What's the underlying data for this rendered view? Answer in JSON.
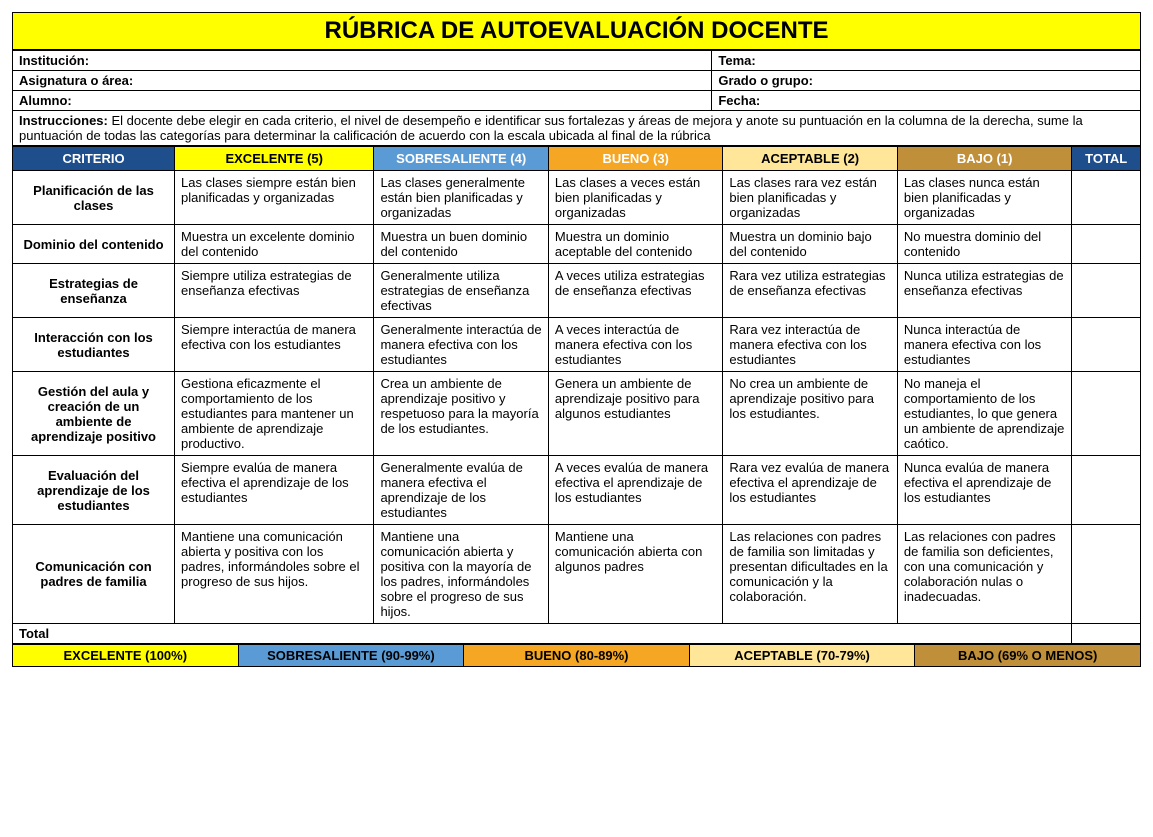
{
  "title": "RÚBRICA DE AUTOEVALUACIÓN DOCENTE",
  "title_bg": "#ffff00",
  "meta": {
    "institucion_label": "Institución:",
    "tema_label": "Tema:",
    "asignatura_label": "Asignatura o área:",
    "grado_label": "Grado o grupo:",
    "alumno_label": "Alumno:",
    "fecha_label": "Fecha:"
  },
  "instructions_label": "Instrucciones:",
  "instructions_text": "  El docente debe elegir en cada criterio, el nivel de desempeño e identificar sus fortalezas y áreas de mejora y anote su puntuación en la columna de la derecha, sume la puntuación de todas las categorías para determinar la calificación de acuerdo con la escala ubicada al final de la rúbrica",
  "columns": {
    "widths": [
      "13%",
      "16%",
      "14%",
      "14%",
      "14%",
      "14%",
      "5.5%"
    ],
    "headers": [
      {
        "label": "CRITERIO",
        "bg": "#1f4e8c"
      },
      {
        "label": "EXCELENTE (5)",
        "bg": "#ffff00",
        "fg": "#000000"
      },
      {
        "label": "SOBRESALIENTE (4)",
        "bg": "#5b9bd5"
      },
      {
        "label": "BUENO (3)",
        "bg": "#f5a623"
      },
      {
        "label": "ACEPTABLE (2)",
        "bg": "#ffe699",
        "fg": "#000000"
      },
      {
        "label": "BAJO (1)",
        "bg": "#bf8f3a"
      },
      {
        "label": "TOTAL",
        "bg": "#1f4e8c"
      }
    ]
  },
  "rows": [
    {
      "criterion": "Planificación de las clases",
      "cells": [
        "Las clases siempre están bien planificadas y organizadas",
        "Las clases generalmente están bien planificadas y organizadas",
        "Las clases a veces están bien planificadas y organizadas",
        "Las clases rara vez están bien planificadas y organizadas",
        "Las clases nunca están bien planificadas y organizadas"
      ]
    },
    {
      "criterion": "Dominio del contenido",
      "cells": [
        "Muestra un excelente dominio del contenido",
        "Muestra un buen dominio del contenido",
        "Muestra un dominio aceptable del contenido",
        "Muestra un dominio bajo del contenido",
        "No muestra dominio del contenido"
      ]
    },
    {
      "criterion": "Estrategias de enseñanza",
      "cells": [
        "Siempre utiliza estrategias de enseñanza efectivas",
        "Generalmente utiliza estrategias de enseñanza efectivas",
        "A veces utiliza estrategias de enseñanza efectivas",
        "Rara vez utiliza estrategias de enseñanza efectivas",
        "Nunca utiliza estrategias de enseñanza efectivas"
      ]
    },
    {
      "criterion": "Interacción con los estudiantes",
      "cells": [
        "Siempre interactúa de manera efectiva con los estudiantes",
        "Generalmente interactúa de manera efectiva con los estudiantes",
        "A veces interactúa de manera efectiva con los estudiantes",
        "Rara vez interactúa de manera efectiva con los estudiantes",
        "Nunca interactúa de manera efectiva con los estudiantes"
      ]
    },
    {
      "criterion": "Gestión del aula y creación de un ambiente de aprendizaje positivo",
      "cells": [
        "Gestiona eficazmente el comportamiento de los estudiantes para mantener un ambiente de aprendizaje productivo.",
        "Crea un ambiente de aprendizaje positivo y respetuoso para la mayoría de los estudiantes.",
        "Genera un ambiente de aprendizaje positivo para algunos estudiantes",
        "No crea un ambiente de aprendizaje positivo para los estudiantes.",
        "No maneja el comportamiento de los estudiantes, lo que genera un ambiente de aprendizaje caótico."
      ]
    },
    {
      "criterion": "Evaluación del aprendizaje de los estudiantes",
      "cells": [
        "Siempre evalúa de manera efectiva el aprendizaje de los estudiantes",
        "Generalmente evalúa de manera efectiva el aprendizaje de los estudiantes",
        "A veces evalúa de manera efectiva el aprendizaje de los estudiantes",
        "Rara vez evalúa de manera efectiva el aprendizaje de los estudiantes",
        "Nunca evalúa de manera efectiva el aprendizaje de los estudiantes"
      ]
    },
    {
      "criterion": "Comunicación con padres de familia",
      "cells": [
        "Mantiene una comunicación abierta y positiva con los padres, informándoles sobre el progreso de sus hijos.",
        "Mantiene una comunicación abierta y positiva con la mayoría de los padres, informándoles sobre el progreso de sus hijos.",
        "Mantiene una comunicación abierta con algunos padres",
        "Las relaciones con padres de familia son limitadas y presentan dificultades en la comunicación y la colaboración.",
        "Las relaciones con padres de familia son deficientes, con una comunicación y colaboración nulas o inadecuadas."
      ]
    }
  ],
  "total_label": "Total",
  "scale": [
    {
      "label": "EXCELENTE (100%)",
      "bg": "#ffff00"
    },
    {
      "label": "SOBRESALIENTE (90-99%)",
      "bg": "#5b9bd5"
    },
    {
      "label": "BUENO (80-89%)",
      "bg": "#f5a623"
    },
    {
      "label": "ACEPTABLE (70-79%)",
      "bg": "#ffe699"
    },
    {
      "label": "BAJO (69% O MENOS)",
      "bg": "#bf8f3a"
    }
  ]
}
